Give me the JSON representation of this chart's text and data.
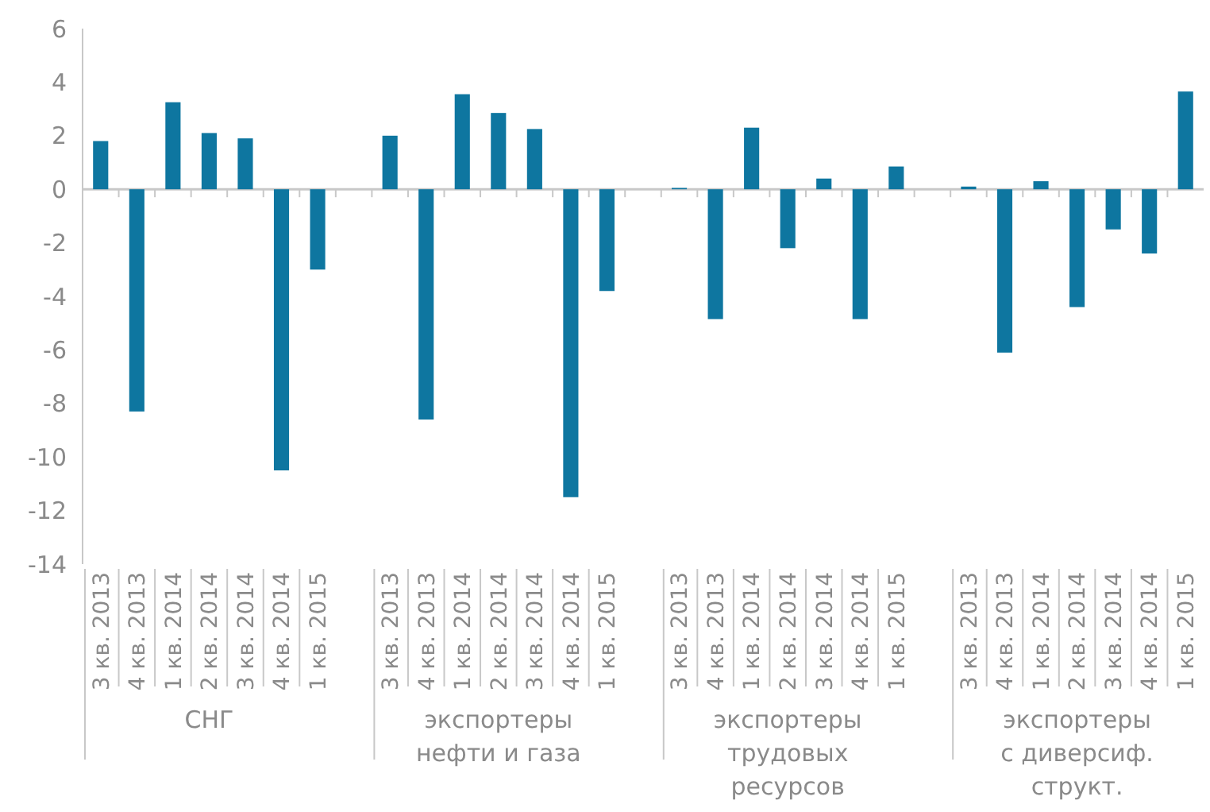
{
  "chart_data": {
    "type": "bar",
    "color": "#0e76a0",
    "categories": [
      "3 кв. 2013",
      "4 кв. 2013",
      "1 кв. 2014",
      "2 кв. 2014",
      "3 кв. 2014",
      "4 кв. 2014",
      "1 кв. 2015",
      null,
      "3 кв. 2013",
      "4 кв. 2013",
      "1 кв. 2014",
      "2 кв. 2014",
      "3 кв. 2014",
      "4 кв. 2014",
      "1 кв. 2015",
      null,
      "3 кв. 2013",
      "4 кв. 2013",
      "1 кв. 2014",
      "2 кв. 2014",
      "3 кв. 2014",
      "4 кв. 2014",
      "1 кв. 2015",
      null,
      "3 кв. 2013",
      "4 кв. 2013",
      "1 кв. 2014",
      "2 кв. 2014",
      "3 кв. 2014",
      "4 кв. 2014",
      "1 кв. 2015"
    ],
    "values": [
      1.8,
      -8.3,
      3.25,
      2.1,
      1.9,
      -10.5,
      -3.0,
      null,
      2.0,
      -8.6,
      3.55,
      2.85,
      2.25,
      -11.5,
      -3.8,
      null,
      0.05,
      -4.85,
      2.3,
      -2.2,
      0.4,
      -4.85,
      0.85,
      null,
      0.1,
      -6.1,
      0.3,
      -4.4,
      -1.5,
      -2.4,
      3.65
    ],
    "annotations": [
      "СНГ",
      "экспортеры\nнефти и газа",
      "экспортеры\nтрудовых\nресурсов",
      "экспортеры\nс диверсиф.\nструкт."
    ],
    "ylim": [
      -14,
      6
    ],
    "yticks": [
      -14,
      -12,
      -10,
      -8,
      -6,
      -4,
      -2,
      0,
      2,
      4,
      6
    ]
  }
}
